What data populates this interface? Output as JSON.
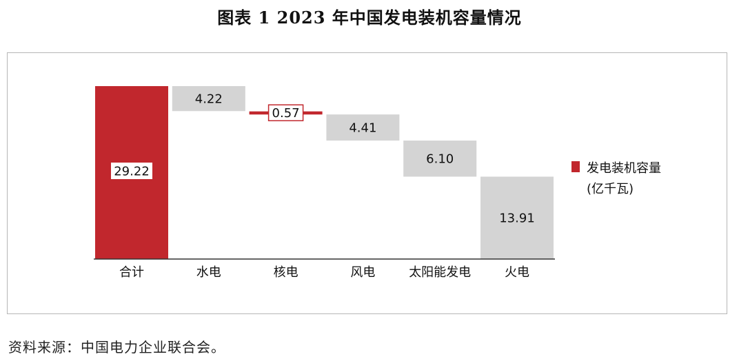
{
  "title": "图表 1  2023 年中国发电装机容量情况",
  "source_note": "资料来源：中国电力企业联合会。",
  "chart_data": {
    "type": "bar",
    "subtype": "waterfall",
    "categories": [
      "合计",
      "水电",
      "核电",
      "风电",
      "太阳能发电",
      "火电"
    ],
    "values": [
      29.22,
      4.22,
      0.57,
      4.41,
      6.1,
      13.91
    ],
    "value_labels": [
      "29.22",
      "4.22",
      "0.57",
      "4.41",
      "6.10",
      "13.91"
    ],
    "total_index": 0,
    "series": [
      {
        "name": "发电装机容量\n(亿千瓦)"
      }
    ],
    "legend_lines": [
      "发电装机容量",
      "(亿千瓦)"
    ],
    "legend_position": "right",
    "colors": {
      "total": "#c1272d",
      "segment": "#d4d4d4",
      "highlight": "#c1272d",
      "axis": "#333333"
    },
    "ylim": [
      0,
      29.22
    ],
    "grid": false
  }
}
